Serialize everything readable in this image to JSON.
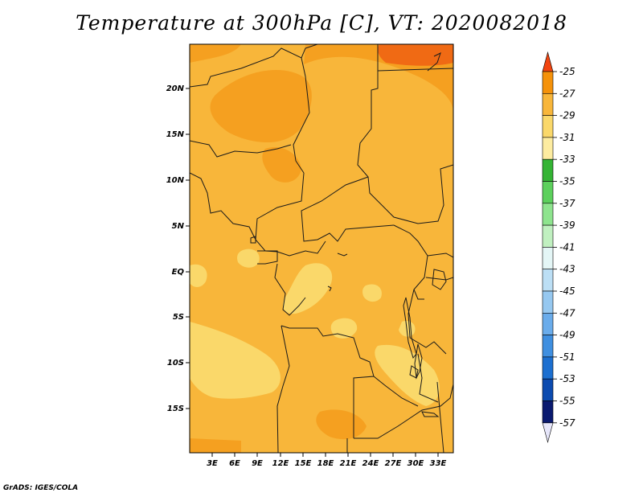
{
  "title": "Temperature at 300hPa [C], VT: 2020082018",
  "credit": "GrADS: IGES/COLA",
  "map": {
    "lat_labels": [
      "20N",
      "15N",
      "10N",
      "5N",
      "EQ",
      "5S",
      "10S",
      "15S"
    ],
    "lon_labels": [
      "3E",
      "6E",
      "9E",
      "12E",
      "15E",
      "18E",
      "21E",
      "24E",
      "27E",
      "30E",
      "33E"
    ],
    "background_color": "#f8b63a"
  },
  "colorbar": {
    "labels": [
      "-25",
      "-27",
      "-29",
      "-31",
      "-33",
      "-35",
      "-37",
      "-39",
      "-41",
      "-43",
      "-45",
      "-47",
      "-49",
      "-51",
      "-53",
      "-55",
      "-57"
    ],
    "colors": [
      "#f06010",
      "#f5920a",
      "#f8b63a",
      "#fad86a",
      "#fdeca0",
      "#34b434",
      "#5cd05c",
      "#8ee48e",
      "#c0f0c0",
      "#e4f6f6",
      "#bcdff5",
      "#96c8f0",
      "#6aaceb",
      "#3f8fe0",
      "#1c6fd0",
      "#0c4bb0",
      "#0a1a70"
    ],
    "top_arrow_color": "#f24510",
    "bottom_arrow_color": "#e6e6fa"
  }
}
